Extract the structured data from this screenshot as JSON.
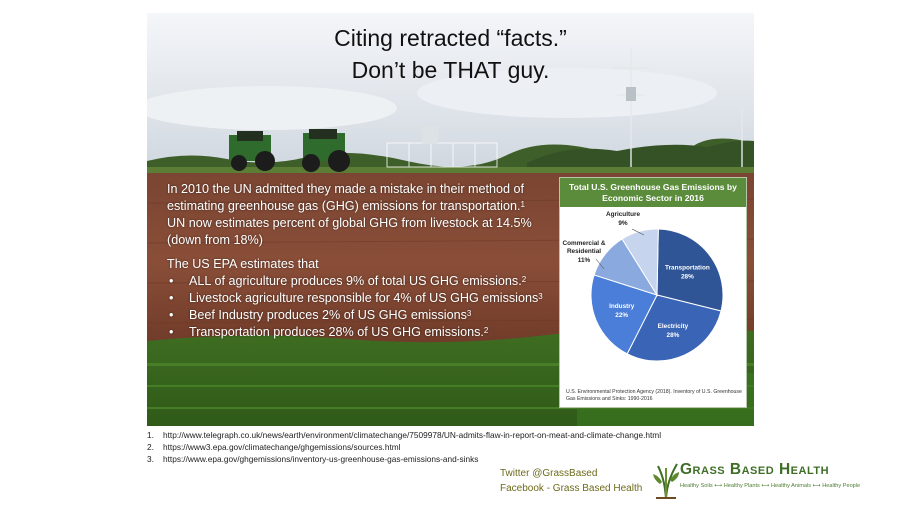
{
  "title": {
    "line1": "Citing retracted “facts.”",
    "line2": "Don’t be THAT guy."
  },
  "body": {
    "para1": "In 2010 the UN admitted they made a mistake in their method of estimating greenhouse gas (GHG) emissions for transportation.",
    "para1_sup": "1",
    "para2": "UN now estimates percent of global GHG from livestock at 14.5% (down from 18%)",
    "epa_intro": "The US EPA estimates that",
    "bullets": [
      {
        "text": "ALL of agriculture produces 9% of total US GHG emissions.",
        "sup": "2"
      },
      {
        "text": "Livestock agriculture responsible for 4% of US GHG emissions",
        "sup": "3"
      },
      {
        "text": "Beef Industry produces 2% of US GHG emissions",
        "sup": "3"
      },
      {
        "text": "Transportation produces 28% of US GHG emissions.",
        "sup": "2"
      }
    ]
  },
  "chart_data": {
    "type": "pie",
    "title": "Total U.S. Greenhouse Gas Emissions by Economic Sector in 2016",
    "categories": [
      "Transportation",
      "Electricity",
      "Industry",
      "Commercial & Residential",
      "Agriculture"
    ],
    "values": [
      28,
      28,
      22,
      11,
      9
    ],
    "labels": [
      "28%",
      "28%",
      "22%",
      "11%",
      "9%"
    ],
    "colors": [
      "#2f5597",
      "#3a64b5",
      "#4a7ed8",
      "#8aa9de",
      "#c7d4ee"
    ],
    "source": "U.S. Environmental Protection Agency (2018). Inventory of U.S. Greenhouse Gas Emissions and Sinks: 1990-2016"
  },
  "references": [
    {
      "num": "1.",
      "url": "http://www.telegraph.co.uk/news/earth/environment/climatechange/7509978/UN-admits-flaw-in-report-on-meat-and-climate-change.html"
    },
    {
      "num": "2.",
      "url": "https://www3.epa.gov/climatechange/ghgemissions/sources.html"
    },
    {
      "num": "3.",
      "url": "https://www.epa.gov/ghgemissions/inventory-us-greenhouse-gas-emissions-and-sinks"
    }
  ],
  "social": {
    "twitter": "Twitter @GrassBased",
    "facebook": "Facebook - Grass Based Health"
  },
  "brand": {
    "name": "Grass Based Health",
    "tagline": "Healthy Soils ⟷ Healthy Plants ⟷ Healthy Animals ⟷ Healthy People"
  }
}
